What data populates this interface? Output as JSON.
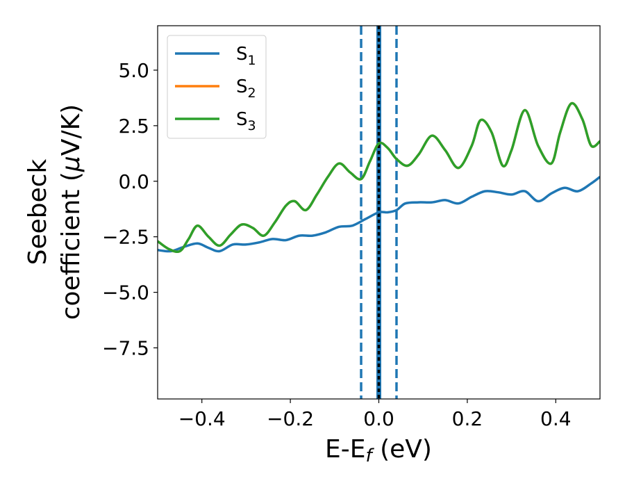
{
  "chart_data": {
    "type": "line",
    "title": "",
    "xlabel": "E-E",
    "xlabel_sub": "f",
    "xlabel_unit": " (eV)",
    "ylabel_line1": "Seebeck",
    "ylabel_line2": "coefficient  (",
    "ylabel_mu": "μ",
    "ylabel_unit": "V/K)",
    "xlim": [
      -0.5,
      0.5
    ],
    "ylim": [
      -9.8,
      7.0
    ],
    "xticks": [
      -0.4,
      -0.2,
      0.0,
      0.2,
      0.4
    ],
    "xtick_labels": [
      "−0.4",
      "−0.2",
      "0.0",
      "0.2",
      "0.4"
    ],
    "yticks": [
      5.0,
      2.5,
      0.0,
      -2.5,
      -5.0,
      -7.5
    ],
    "ytick_labels": [
      "5.0",
      "2.5",
      "0.0",
      "−2.5",
      "−5.0",
      "−7.5"
    ],
    "grid": false,
    "legend_position": "top-left",
    "series": [
      {
        "name": "S",
        "sub": "1",
        "color": "#1f77b4",
        "x": [
          -0.5,
          -0.47,
          -0.44,
          -0.41,
          -0.385,
          -0.36,
          -0.33,
          -0.3,
          -0.27,
          -0.24,
          -0.21,
          -0.18,
          -0.15,
          -0.12,
          -0.09,
          -0.06,
          -0.03,
          0.0,
          0.02,
          0.04,
          0.06,
          0.09,
          0.12,
          0.15,
          0.18,
          0.21,
          0.24,
          0.27,
          0.3,
          0.33,
          0.36,
          0.39,
          0.42,
          0.45,
          0.48,
          0.5
        ],
        "y": [
          -3.1,
          -3.15,
          -2.95,
          -2.8,
          -3.0,
          -3.15,
          -2.85,
          -2.85,
          -2.75,
          -2.6,
          -2.65,
          -2.45,
          -2.45,
          -2.3,
          -2.05,
          -2.0,
          -1.7,
          -1.4,
          -1.4,
          -1.3,
          -1.0,
          -0.95,
          -0.95,
          -0.85,
          -1.0,
          -0.7,
          -0.45,
          -0.5,
          -0.6,
          -0.45,
          -0.9,
          -0.55,
          -0.3,
          -0.45,
          -0.1,
          0.2
        ]
      },
      {
        "name": "S",
        "sub": "2",
        "color": "#ff7f0e",
        "x": [
          -0.5,
          -0.475,
          -0.45,
          -0.43,
          -0.41,
          -0.385,
          -0.36,
          -0.335,
          -0.31,
          -0.285,
          -0.26,
          -0.235,
          -0.21,
          -0.19,
          -0.165,
          -0.14,
          -0.115,
          -0.09,
          -0.065,
          -0.04,
          -0.02,
          0.0,
          0.02,
          0.04,
          0.065,
          0.09,
          0.12,
          0.15,
          0.18,
          0.21,
          0.23,
          0.255,
          0.28,
          0.3,
          0.33,
          0.36,
          0.39,
          0.41,
          0.435,
          0.46,
          0.48,
          0.5
        ],
        "y": [
          -2.7,
          -3.05,
          -3.15,
          -2.6,
          -2.0,
          -2.5,
          -2.9,
          -2.4,
          -1.95,
          -2.1,
          -2.45,
          -1.85,
          -1.1,
          -0.9,
          -1.3,
          -0.6,
          0.2,
          0.8,
          0.4,
          0.1,
          0.9,
          1.7,
          1.5,
          1.0,
          0.7,
          1.2,
          2.05,
          1.4,
          0.6,
          1.6,
          2.75,
          2.2,
          0.7,
          1.4,
          3.2,
          1.6,
          0.8,
          2.2,
          3.5,
          2.8,
          1.6,
          1.8
        ]
      },
      {
        "name": "S",
        "sub": "3",
        "color": "#2ca02c",
        "x": [
          -0.5,
          -0.475,
          -0.45,
          -0.43,
          -0.41,
          -0.385,
          -0.36,
          -0.335,
          -0.31,
          -0.285,
          -0.26,
          -0.235,
          -0.21,
          -0.19,
          -0.165,
          -0.14,
          -0.115,
          -0.09,
          -0.065,
          -0.04,
          -0.02,
          0.0,
          0.02,
          0.04,
          0.065,
          0.09,
          0.12,
          0.15,
          0.18,
          0.21,
          0.23,
          0.255,
          0.28,
          0.3,
          0.33,
          0.36,
          0.39,
          0.41,
          0.435,
          0.46,
          0.48,
          0.5
        ],
        "y": [
          -2.7,
          -3.05,
          -3.15,
          -2.6,
          -2.0,
          -2.5,
          -2.9,
          -2.4,
          -1.95,
          -2.1,
          -2.45,
          -1.85,
          -1.1,
          -0.9,
          -1.3,
          -0.6,
          0.2,
          0.8,
          0.4,
          0.1,
          0.9,
          1.7,
          1.5,
          1.0,
          0.7,
          1.2,
          2.05,
          1.4,
          0.6,
          1.6,
          2.75,
          2.2,
          0.7,
          1.4,
          3.2,
          1.6,
          0.8,
          2.2,
          3.5,
          2.8,
          1.6,
          1.8
        ]
      }
    ],
    "vlines": [
      {
        "x": -0.04,
        "color": "#1f77b4",
        "style": "dashed"
      },
      {
        "x": 0.0,
        "color": "#1f77b4",
        "style": "solid"
      },
      {
        "x": 0.04,
        "color": "#1f77b4",
        "style": "dashed"
      },
      {
        "x": 0.0,
        "color": "#000000",
        "style": "dotted"
      }
    ]
  }
}
